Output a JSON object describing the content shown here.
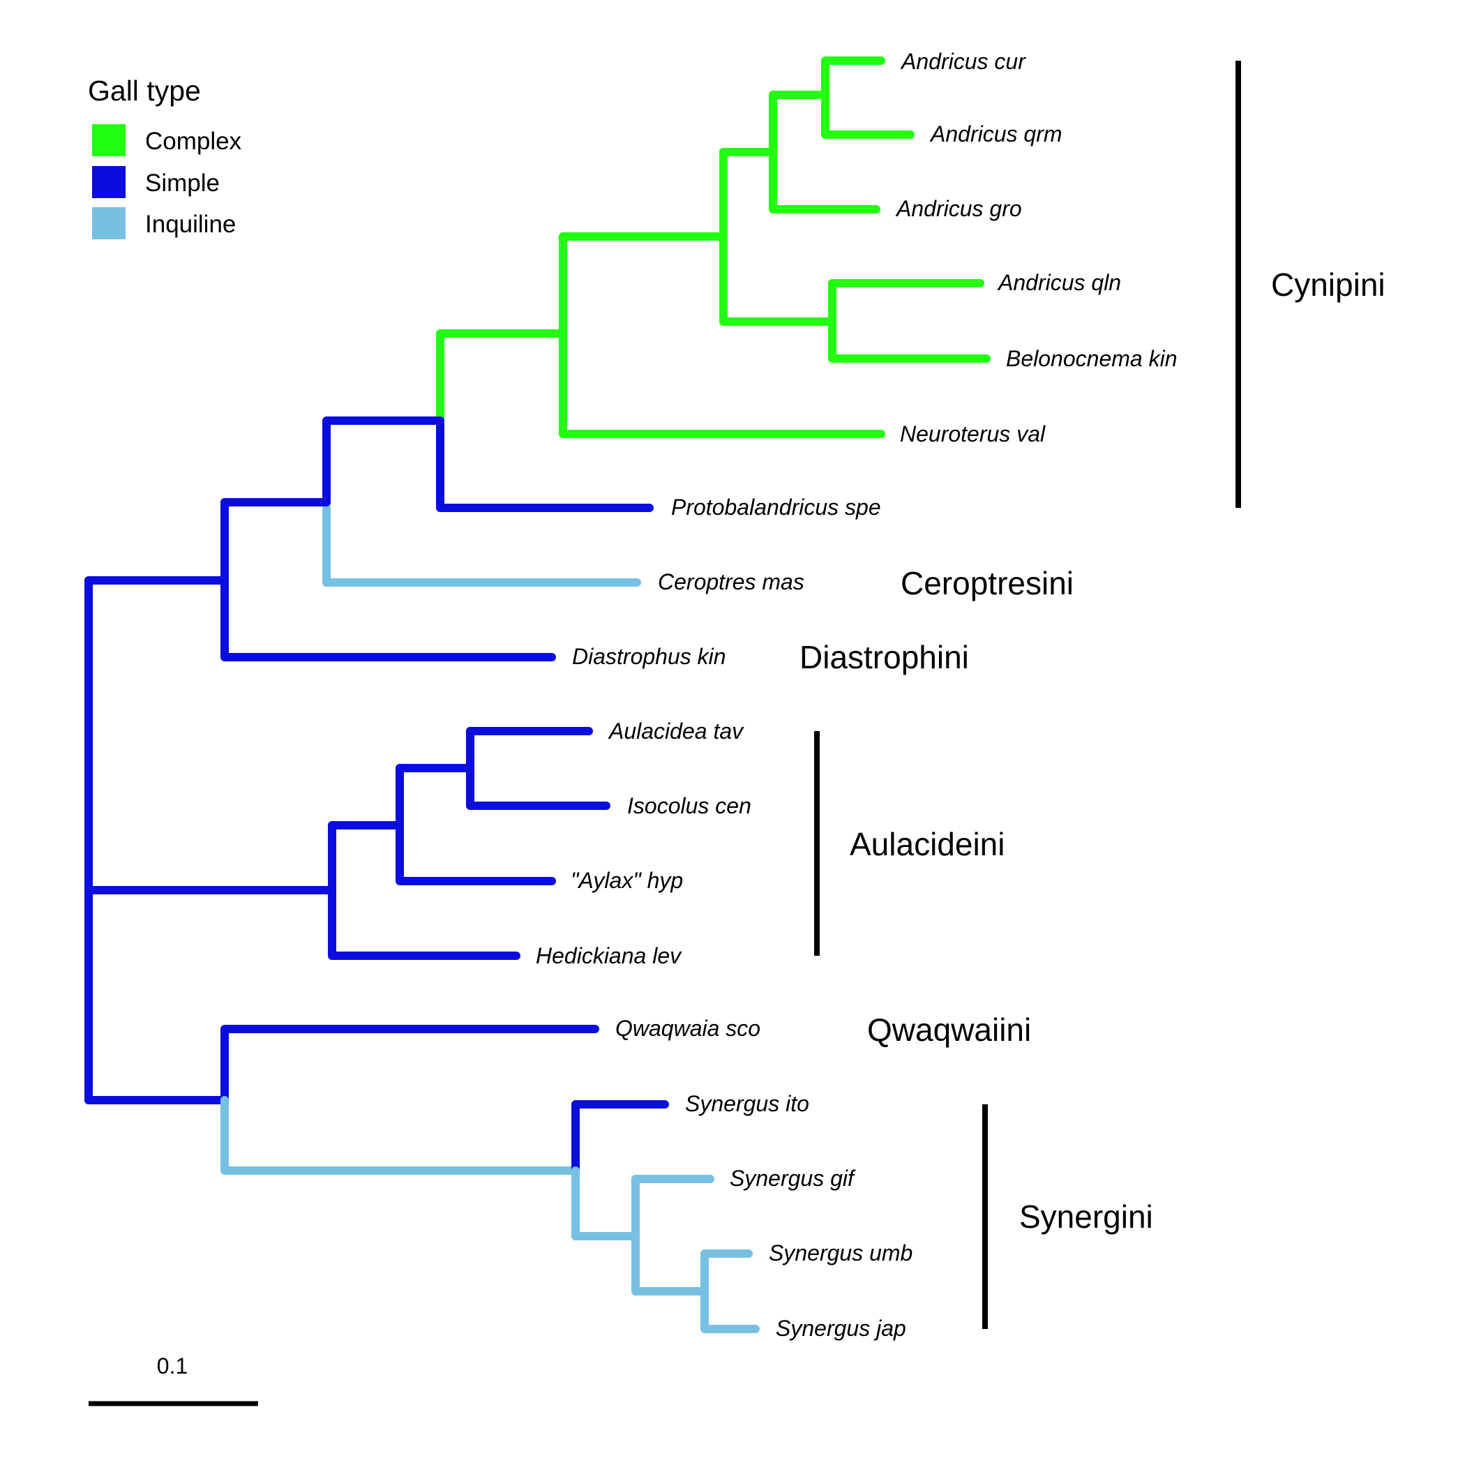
{
  "colors": {
    "Complex": "#22ff11",
    "Simple": "#0a0ddd",
    "Inquiline": "#78c0e2",
    "bracket": "#000000"
  },
  "legend": {
    "title": "Gall type",
    "items": [
      {
        "label": "Complex",
        "key": "Complex"
      },
      {
        "label": "Simple",
        "key": "Simple"
      },
      {
        "label": "Inquiline",
        "key": "Inquiline"
      }
    ]
  },
  "scale_bar": {
    "label": "0.1",
    "length": 0.1
  },
  "tree": {
    "taxa": [
      {
        "name": "Andricus cur",
        "gall_type": "Complex"
      },
      {
        "name": "Andricus qrm",
        "gall_type": "Complex"
      },
      {
        "name": "Andricus gro",
        "gall_type": "Complex"
      },
      {
        "name": "Andricus qln",
        "gall_type": "Complex"
      },
      {
        "name": "Belonocnema kin",
        "gall_type": "Complex"
      },
      {
        "name": "Neuroterus val",
        "gall_type": "Complex"
      },
      {
        "name": "Protobalandricus spe",
        "gall_type": "Simple"
      },
      {
        "name": "Ceroptres mas",
        "gall_type": "Inquiline"
      },
      {
        "name": "Diastrophus kin",
        "gall_type": "Simple"
      },
      {
        "name": "Aulacidea tav",
        "gall_type": "Simple"
      },
      {
        "name": "Isocolus cen",
        "gall_type": "Simple"
      },
      {
        "name": "\"Aylax\" hyp",
        "gall_type": "Simple"
      },
      {
        "name": "Hedickiana lev",
        "gall_type": "Simple"
      },
      {
        "name": "Qwaqwaia sco",
        "gall_type": "Simple"
      },
      {
        "name": "Synergus ito",
        "gall_type": "Simple"
      },
      {
        "name": "Synergus gif",
        "gall_type": "Inquiline"
      },
      {
        "name": "Synergus umb",
        "gall_type": "Inquiline"
      },
      {
        "name": "Synergus jap",
        "gall_type": "Inquiline"
      }
    ],
    "tribes": [
      {
        "name": "Cynipini",
        "members": [
          "Andricus cur",
          "Andricus qrm",
          "Andricus gro",
          "Andricus qln",
          "Belonocnema kin",
          "Neuroterus val",
          "Protobalandricus spe"
        ]
      },
      {
        "name": "Ceroptresini",
        "members": [
          "Ceroptres mas"
        ]
      },
      {
        "name": "Diastrophini",
        "members": [
          "Diastrophus kin"
        ]
      },
      {
        "name": "Aulacideini",
        "members": [
          "Aulacidea tav",
          "Isocolus cen",
          "\"Aylax\" hyp",
          "Hedickiana lev"
        ]
      },
      {
        "name": "Qwaqwaiini",
        "members": [
          "Qwaqwaia sco"
        ]
      },
      {
        "name": "Synergini",
        "members": [
          "Synergus ito",
          "Synergus gif",
          "Synergus umb",
          "Synergus jap"
        ]
      }
    ]
  }
}
